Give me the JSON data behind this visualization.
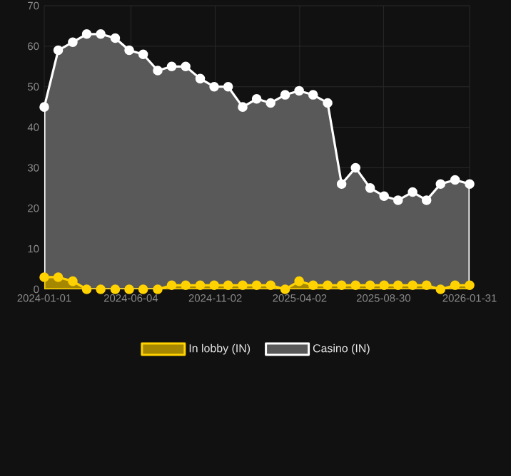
{
  "chart_data": {
    "type": "area",
    "x": [
      "2024-01-01",
      "2024-01-26",
      "2024-02-21",
      "2024-03-17",
      "2024-04-11",
      "2024-05-07",
      "2024-06-01",
      "2024-06-26",
      "2024-07-22",
      "2024-08-16",
      "2024-09-10",
      "2024-10-06",
      "2024-10-31",
      "2024-11-25",
      "2024-12-21",
      "2025-01-15",
      "2025-02-09",
      "2025-03-07",
      "2025-04-01",
      "2025-04-26",
      "2025-05-22",
      "2025-06-16",
      "2025-07-11",
      "2025-08-06",
      "2025-08-31",
      "2025-09-25",
      "2025-10-21",
      "2025-11-15",
      "2025-12-10",
      "2026-01-05",
      "2026-01-31"
    ],
    "series": [
      {
        "name": "In lobby (IN)",
        "color": "#ffd200",
        "values": [
          3,
          3,
          2,
          0,
          0,
          0,
          0,
          0,
          0,
          1,
          1,
          1,
          1,
          1,
          1,
          1,
          1,
          0,
          2,
          1,
          1,
          1,
          1,
          1,
          1,
          1,
          1,
          1,
          0,
          1,
          1
        ]
      },
      {
        "name": "Casino (IN)",
        "color": "#ffffff",
        "values": [
          45,
          59,
          61,
          63,
          63,
          62,
          59,
          58,
          54,
          55,
          55,
          52,
          50,
          50,
          45,
          47,
          46,
          48,
          49,
          48,
          46,
          26,
          30,
          25,
          23,
          22,
          24,
          22,
          26,
          27,
          26
        ]
      }
    ],
    "xlim": [
      "2024-01-01",
      "2026-01-31"
    ],
    "xticks": [
      "2024-01-01",
      "2024-06-04",
      "2024-11-02",
      "2025-04-02",
      "2025-08-30",
      "2026-01-31"
    ],
    "ylim": [
      0,
      70
    ],
    "yticks": [
      0,
      10,
      20,
      30,
      40,
      50,
      60,
      70
    ],
    "grid": true,
    "legend": "bottom",
    "marker": "circle",
    "line_style": "solid"
  }
}
